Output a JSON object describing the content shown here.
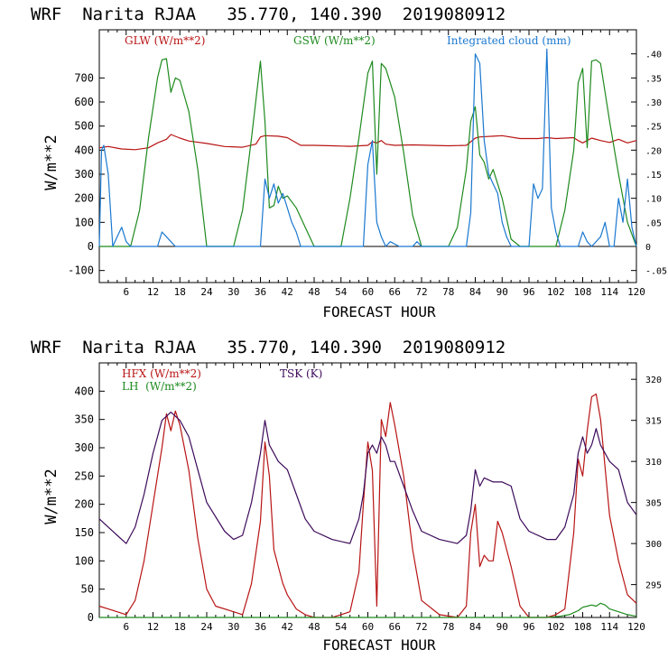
{
  "panels": [
    {
      "title": "WRF  Narita RJAA   35.770, 140.390  2019080912",
      "xlabel": "FORECAST HOUR",
      "ylabel": "W/m**2",
      "legend": [
        {
          "label": "GLW (W/m**2)",
          "color": "#b81414"
        },
        {
          "label": "GSW (W/m**2)",
          "color": "#1e8a1e"
        },
        {
          "label": "Integrated cloud (mm)",
          "color": "#1a78d0"
        }
      ]
    },
    {
      "title": "WRF  Narita RJAA   35.770, 140.390  2019080912",
      "xlabel": "FORECAST HOUR",
      "ylabel": "W/m**2",
      "legend": [
        {
          "label": "HFX (W/m**2)",
          "color": "#b81414"
        },
        {
          "label": "LH  (W/m**2)",
          "color": "#1e8a1e"
        },
        {
          "label": "TSK (K)",
          "color": "#3c0a5a"
        }
      ]
    }
  ],
  "chart_data": [
    {
      "type": "line",
      "xlim": [
        0,
        120
      ],
      "ylim": [
        -150,
        900
      ],
      "y2lim": [
        -0.075,
        0.45
      ],
      "x_ticks": [
        6,
        12,
        18,
        24,
        30,
        36,
        42,
        48,
        54,
        60,
        66,
        72,
        78,
        84,
        90,
        96,
        102,
        108,
        114,
        120
      ],
      "y_ticks": [
        -100,
        0,
        100,
        200,
        300,
        400,
        500,
        600,
        700
      ],
      "y2_ticks": [
        -0.05,
        0,
        0.05,
        0.1,
        0.15,
        0.2,
        0.25,
        0.3,
        0.35,
        0.4
      ],
      "y2_tick_labels": [
        "-.05",
        "0",
        ".05",
        ".10",
        ".15",
        ".20",
        ".25",
        ".30",
        ".35",
        ".40"
      ],
      "series": [
        {
          "name": "GLW (W/m**2)",
          "axis": "left",
          "color": "#b81414",
          "x": [
            0,
            2,
            5,
            8,
            11,
            13,
            15,
            16,
            18,
            20,
            24,
            28,
            32,
            35,
            36,
            37,
            40,
            42,
            45,
            48,
            52,
            56,
            60,
            61,
            62,
            63,
            64,
            66,
            70,
            74,
            78,
            82,
            84,
            85,
            88,
            90,
            94,
            98,
            100,
            102,
            104,
            106,
            107,
            108,
            110,
            112,
            114,
            116,
            118,
            120
          ],
          "y": [
            410,
            415,
            405,
            402,
            410,
            430,
            445,
            465,
            450,
            438,
            428,
            415,
            412,
            425,
            455,
            460,
            458,
            452,
            420,
            420,
            418,
            416,
            420,
            435,
            430,
            440,
            425,
            420,
            422,
            420,
            418,
            420,
            450,
            455,
            458,
            460,
            448,
            448,
            452,
            448,
            450,
            452,
            440,
            430,
            450,
            440,
            432,
            445,
            430,
            440
          ]
        },
        {
          "name": "GSW (W/m**2)",
          "axis": "left",
          "color": "#1e8a1e",
          "x": [
            0,
            7,
            9,
            11,
            13,
            14,
            15,
            16,
            17,
            18,
            20,
            22,
            24,
            30,
            32,
            34,
            36,
            37,
            38,
            39,
            40,
            41,
            42,
            44,
            46,
            48,
            54,
            56,
            58,
            60,
            61,
            62,
            63,
            64,
            66,
            68,
            70,
            72,
            78,
            80,
            81,
            82,
            83,
            84,
            85,
            86,
            87,
            88,
            90,
            92,
            94,
            96,
            102,
            104,
            106,
            107,
            108,
            109,
            110,
            111,
            112,
            114,
            116,
            118,
            120
          ],
          "y": [
            0,
            0,
            150,
            450,
            700,
            775,
            780,
            640,
            700,
            690,
            560,
            320,
            0,
            0,
            150,
            450,
            770,
            520,
            160,
            170,
            250,
            200,
            210,
            160,
            80,
            0,
            0,
            200,
            450,
            720,
            770,
            300,
            760,
            740,
            620,
            390,
            130,
            0,
            0,
            80,
            200,
            320,
            520,
            580,
            380,
            350,
            280,
            320,
            200,
            30,
            0,
            0,
            0,
            150,
            400,
            680,
            740,
            410,
            770,
            775,
            760,
            520,
            300,
            100,
            0
          ]
        },
        {
          "name": "Integrated cloud (mm)",
          "axis": "right",
          "color": "#1a78d0",
          "x": [
            0,
            0.5,
            1,
            2,
            3,
            4,
            5,
            6,
            7,
            13,
            14,
            15,
            16,
            17,
            18,
            36,
            37,
            38,
            39,
            40,
            41,
            42,
            43,
            44,
            45,
            46,
            59,
            60,
            61,
            62,
            63,
            64,
            65,
            67,
            70,
            71,
            72,
            82,
            83,
            84,
            85,
            86,
            87,
            88,
            89,
            90,
            91,
            92,
            96,
            97,
            98,
            99,
            100,
            101,
            102,
            103,
            104,
            105,
            107,
            108,
            109,
            110,
            112,
            113,
            114,
            115,
            116,
            117,
            118,
            119,
            120
          ],
          "y": [
            0.0,
            0.2,
            0.21,
            0.15,
            0.0,
            0.02,
            0.04,
            0.01,
            0.0,
            0.0,
            0.03,
            0.02,
            0.01,
            0.0,
            0.0,
            0.0,
            0.14,
            0.1,
            0.13,
            0.09,
            0.11,
            0.08,
            0.05,
            0.03,
            0.0,
            0.0,
            0.0,
            0.17,
            0.22,
            0.05,
            0.02,
            0.0,
            0.01,
            0.0,
            0.0,
            0.01,
            0.0,
            0.0,
            0.07,
            0.4,
            0.38,
            0.22,
            0.15,
            0.13,
            0.11,
            0.05,
            0.02,
            0.0,
            0.0,
            0.13,
            0.1,
            0.12,
            0.41,
            0.08,
            0.03,
            0.0,
            0.0,
            0.0,
            0.0,
            0.03,
            0.01,
            0.0,
            0.02,
            0.05,
            0.0,
            0.0,
            0.1,
            0.05,
            0.14,
            0.04,
            0.0
          ]
        }
      ]
    },
    {
      "type": "line",
      "xlim": [
        0,
        120
      ],
      "ylim": [
        0,
        450
      ],
      "y2lim": [
        291,
        322
      ],
      "x_ticks": [
        6,
        12,
        18,
        24,
        30,
        36,
        42,
        48,
        54,
        60,
        66,
        72,
        78,
        84,
        90,
        96,
        102,
        108,
        114,
        120
      ],
      "y_ticks": [
        0,
        50,
        100,
        150,
        200,
        250,
        300,
        350,
        400
      ],
      "y2_ticks": [
        295,
        300,
        305,
        310,
        315,
        320
      ],
      "series": [
        {
          "name": "HFX (W/m**2)",
          "axis": "left",
          "color": "#b81414",
          "x": [
            0,
            2,
            4,
            6,
            8,
            10,
            12,
            14,
            15,
            16,
            17,
            18,
            20,
            22,
            24,
            26,
            30,
            32,
            34,
            36,
            37,
            38,
            39,
            40,
            41,
            42,
            44,
            46,
            48,
            52,
            54,
            56,
            58,
            59,
            60,
            61,
            62,
            63,
            64,
            65,
            66,
            68,
            70,
            72,
            76,
            80,
            82,
            83,
            84,
            85,
            86,
            87,
            88,
            89,
            90,
            92,
            94,
            96,
            100,
            102,
            104,
            106,
            107,
            108,
            109,
            110,
            111,
            112,
            114,
            116,
            118,
            120
          ],
          "y": [
            20,
            15,
            10,
            5,
            30,
            100,
            200,
            300,
            360,
            330,
            365,
            340,
            260,
            140,
            50,
            20,
            10,
            5,
            60,
            170,
            310,
            250,
            120,
            90,
            60,
            40,
            15,
            5,
            0,
            0,
            5,
            10,
            80,
            200,
            310,
            260,
            20,
            350,
            320,
            380,
            340,
            250,
            120,
            30,
            5,
            0,
            20,
            150,
            200,
            90,
            110,
            100,
            100,
            170,
            150,
            90,
            20,
            0,
            0,
            5,
            15,
            150,
            280,
            250,
            330,
            390,
            395,
            350,
            180,
            100,
            40,
            25
          ]
        },
        {
          "name": "LH  (W/m**2)",
          "axis": "left",
          "color": "#1e8a1e",
          "x": [
            0,
            100,
            103,
            105,
            107,
            108,
            109,
            110,
            111,
            112,
            113,
            114,
            116,
            118,
            120
          ],
          "y": [
            0,
            0,
            2,
            5,
            12,
            18,
            20,
            22,
            20,
            25,
            22,
            15,
            10,
            5,
            2
          ]
        },
        {
          "name": "TSK (K)",
          "axis": "right",
          "color": "#3c0a5a",
          "x": [
            0,
            2,
            4,
            6,
            8,
            10,
            12,
            14,
            15,
            16,
            17,
            18,
            20,
            22,
            24,
            28,
            30,
            32,
            34,
            36,
            37,
            38,
            39,
            40,
            42,
            44,
            46,
            48,
            52,
            56,
            58,
            59,
            60,
            61,
            62,
            63,
            64,
            65,
            66,
            68,
            70,
            72,
            76,
            80,
            82,
            83,
            84,
            85,
            86,
            88,
            90,
            92,
            94,
            96,
            100,
            102,
            104,
            106,
            107,
            108,
            109,
            110,
            111,
            112,
            114,
            116,
            118,
            120
          ],
          "y": [
            303,
            302,
            301,
            300,
            302,
            306,
            311,
            315,
            315.5,
            316,
            315.5,
            315,
            313,
            309,
            305,
            301.5,
            300.5,
            301,
            305,
            311,
            315,
            312,
            311,
            310,
            309,
            306,
            303,
            301.5,
            300.5,
            300,
            303,
            306,
            311,
            312,
            311,
            313,
            312,
            310,
            310,
            307,
            304,
            301.5,
            300.5,
            300,
            301,
            304,
            309,
            307,
            308,
            307.5,
            307.5,
            307,
            303,
            301.5,
            300.5,
            300.5,
            302,
            306,
            311,
            313,
            311,
            312,
            314,
            312,
            310,
            309,
            305,
            303.5
          ]
        }
      ]
    }
  ]
}
